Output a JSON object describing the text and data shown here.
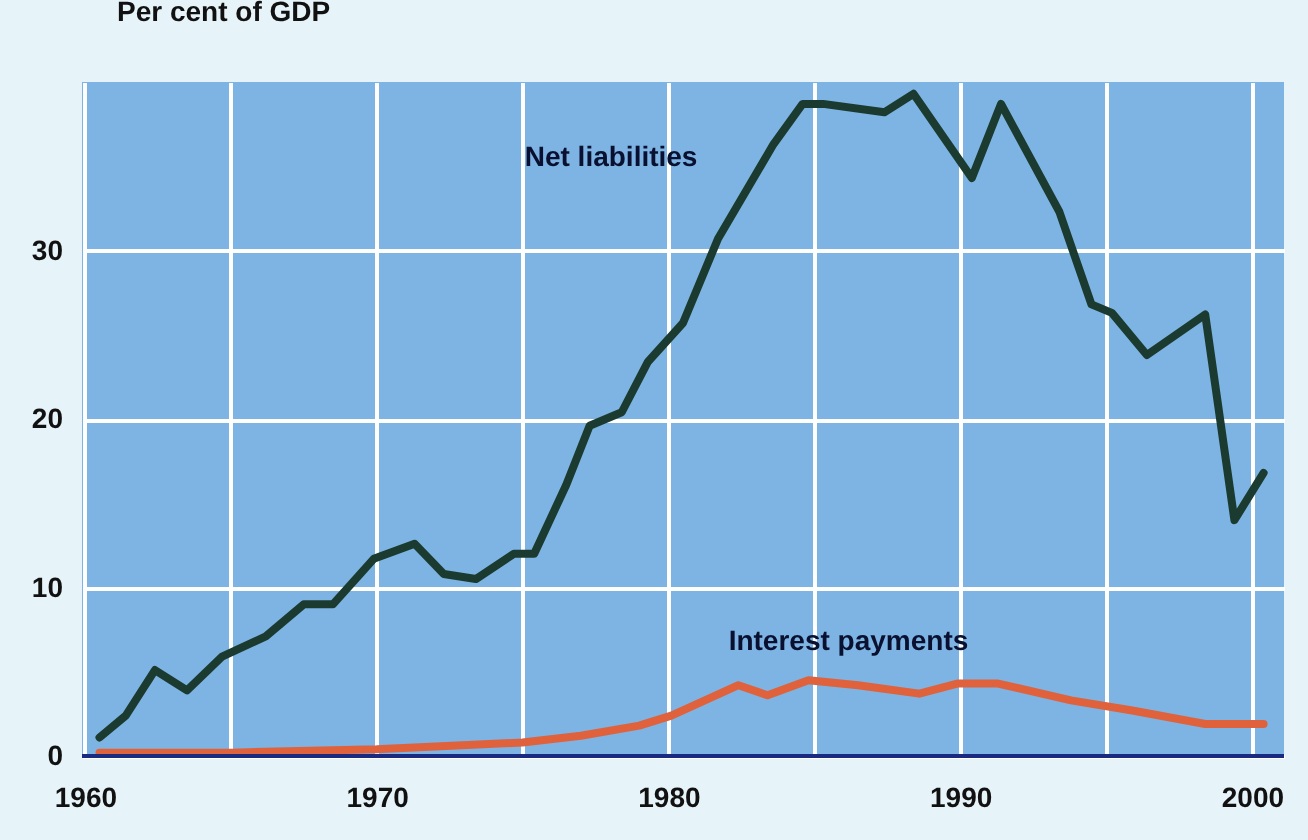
{
  "chart_data": {
    "type": "line",
    "ylabel": "Per cent of GDP",
    "xlim": [
      1959.9,
      2001.1
    ],
    "ylim": [
      0,
      40
    ],
    "xticks": [
      1960,
      {
        "value": 1965,
        "label": null
      },
      1970,
      {
        "value": 1975,
        "label": null
      },
      1980,
      {
        "value": 1985,
        "label": null
      },
      1990,
      {
        "value": 1995,
        "label": null
      },
      2000
    ],
    "yticks": [
      0,
      10,
      20,
      30
    ],
    "grid": true,
    "line_style": "solid",
    "series": [
      {
        "name": "Net liabilities",
        "color": "#1c3b30",
        "x": [
          1960.5,
          1961.4,
          1962.4,
          1963.5,
          1964.7,
          1966.2,
          1967.5,
          1968.5,
          1969.9,
          1971.3,
          1972.3,
          1973.4,
          1974.7,
          1975.4,
          1976.5,
          1977.3,
          1978.4,
          1979.3,
          1980.5,
          1981.7,
          1983.6,
          1984.6,
          1985.3,
          1987.4,
          1988.4,
          1990.4,
          1991.4,
          1993.4,
          1994.5,
          1995.2,
          1996.4,
          1998.4,
          1999.4,
          2000.4
        ],
        "values": [
          1.1,
          2.4,
          5.1,
          3.9,
          5.9,
          7.1,
          9.0,
          9.0,
          11.7,
          12.6,
          10.8,
          10.5,
          12.0,
          12.0,
          16.1,
          19.6,
          20.4,
          23.4,
          25.7,
          30.7,
          36.3,
          38.7,
          38.7,
          38.2,
          39.3,
          34.3,
          38.7,
          32.3,
          26.8,
          26.3,
          23.8,
          26.2,
          14.0,
          16.8
        ]
      },
      {
        "name": "Interest payments",
        "color": "#e0623c",
        "x": [
          1960.5,
          1965,
          1970,
          1975,
          1977,
          1979,
          1980.1,
          1982.4,
          1983.4,
          1984.8,
          1986.5,
          1988.6,
          1989.9,
          1991.3,
          1993.8,
          1995.9,
          1998.4,
          2000.4
        ],
        "values": [
          0.2,
          0.2,
          0.4,
          0.8,
          1.2,
          1.8,
          2.4,
          4.2,
          3.6,
          4.5,
          4.2,
          3.7,
          4.3,
          4.3,
          3.3,
          2.7,
          1.9,
          1.9
        ]
      }
    ]
  }
}
